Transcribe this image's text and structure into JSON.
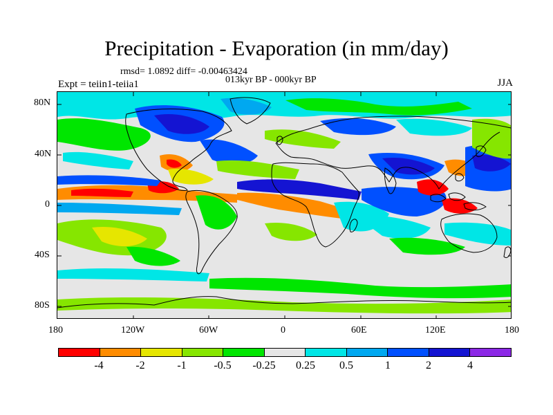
{
  "title": "Precipitation - Evaporation (in mm/day)",
  "stats_text": "rmsd= 1.0892 diff= -0.00463424",
  "period_text": "013kyr BP - 000kyr BP",
  "experiment_text": "Expt = teiin1-teiia1",
  "season": "JJA",
  "chart_data": {
    "type": "map",
    "projection": "cylindrical equidistant",
    "variable": "Precipitation - Evaporation",
    "units": "mm/day",
    "lon_range": [
      -180,
      180
    ],
    "lat_range": [
      -90,
      90
    ],
    "lat_ticks": [
      "80N",
      "40N",
      "0",
      "40S",
      "80S"
    ],
    "lon_ticks": [
      "180",
      "120W",
      "60W",
      "0",
      "60E",
      "120E",
      "180"
    ],
    "legend": {
      "labels": [
        "-4",
        "-2",
        "-1",
        "-0.5",
        "-0.25",
        "0.25",
        "0.5",
        "1",
        "2",
        "4"
      ],
      "colors": [
        "#ff0000",
        "#ff8c00",
        "#e6e600",
        "#86e600",
        "#00e600",
        "#e6e6e6",
        "#00e6e6",
        "#00a8f0",
        "#0050ff",
        "#1414d2",
        "#8c28e6"
      ]
    },
    "background_color": "#e6e6e6"
  }
}
